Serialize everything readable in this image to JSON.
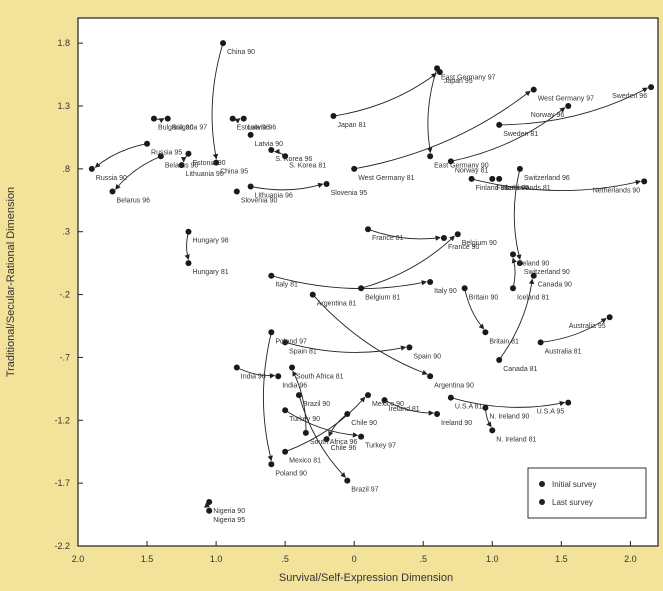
{
  "chart_data": {
    "type": "scatter",
    "xlabel": "Survival/Self-Expression Dimension",
    "ylabel": "Traditional/Secular-Rational Dimension",
    "xlim": [
      -2.0,
      2.2
    ],
    "ylim": [
      -2.2,
      2.0
    ],
    "xticks": [
      {
        "v": -2.0,
        "label": "2.0"
      },
      {
        "v": -1.5,
        "label": "1.5"
      },
      {
        "v": -1.0,
        "label": "1.0"
      },
      {
        "v": -0.5,
        "label": ".5"
      },
      {
        "v": 0,
        "label": "0"
      },
      {
        "v": 0.5,
        "label": ".5"
      },
      {
        "v": 1.0,
        "label": "1.0"
      },
      {
        "v": 1.5,
        "label": "1.5"
      },
      {
        "v": 2.0,
        "label": "2.0"
      }
    ],
    "yticks": [
      {
        "v": 1.8,
        "label": "1.8"
      },
      {
        "v": 1.3,
        "label": "1.3"
      },
      {
        "v": 0.8,
        "label": ".8"
      },
      {
        "v": 0.3,
        "label": ".3"
      },
      {
        "v": -0.2,
        "label": "-.2"
      },
      {
        "v": -0.7,
        "label": "-.7"
      },
      {
        "v": -1.2,
        "label": "-1.2"
      },
      {
        "v": -1.7,
        "label": "-1.7"
      },
      {
        "v": -2.2,
        "label": "-2.2"
      }
    ],
    "legend": {
      "position": "bottom-right",
      "entries": [
        "Initial survey",
        "Last survey"
      ]
    },
    "grid": false,
    "points": [
      {
        "id": "china90",
        "label": "China 90",
        "x": -0.95,
        "y": 1.8
      },
      {
        "id": "china95",
        "label": "China 95",
        "x": -1.0,
        "y": 0.85
      },
      {
        "id": "egermany97",
        "label": "East Germany 97",
        "x": 0.6,
        "y": 1.6
      },
      {
        "id": "japan95",
        "label": "Japan 95",
        "x": 0.62,
        "y": 1.57
      },
      {
        "id": "wgermany97",
        "label": "West Germany 97",
        "x": 1.3,
        "y": 1.43
      },
      {
        "id": "sweden96",
        "label": "Sweden 96",
        "x": 2.15,
        "y": 1.45
      },
      {
        "id": "norway96",
        "label": "Norway 96",
        "x": 1.55,
        "y": 1.3
      },
      {
        "id": "bulgaria90",
        "label": "Bulgaria 90",
        "x": -1.45,
        "y": 1.2
      },
      {
        "id": "bulgaria97",
        "label": "Bulgaria 97",
        "x": -1.35,
        "y": 1.2
      },
      {
        "id": "estonia96",
        "label": "Estonia 96",
        "x": -0.88,
        "y": 1.2
      },
      {
        "id": "latvia96",
        "label": "Latvia 96",
        "x": -0.8,
        "y": 1.2
      },
      {
        "id": "latvia90",
        "label": "Latvia 90",
        "x": -0.75,
        "y": 1.07
      },
      {
        "id": "japan81",
        "label": "Japan 81",
        "x": -0.15,
        "y": 1.22
      },
      {
        "id": "sweden81",
        "label": "Sweden 81",
        "x": 1.05,
        "y": 1.15
      },
      {
        "id": "russia95",
        "label": "Russia 95",
        "x": -1.5,
        "y": 1.0
      },
      {
        "id": "skorea96",
        "label": "S. Korea 96",
        "x": -0.6,
        "y": 0.95
      },
      {
        "id": "skorea81",
        "label": "S. Korea 81",
        "x": -0.5,
        "y": 0.9
      },
      {
        "id": "egermany90",
        "label": "East Germany 90",
        "x": 0.55,
        "y": 0.9
      },
      {
        "id": "belarus90",
        "label": "Belarus 90",
        "x": -1.4,
        "y": 0.9
      },
      {
        "id": "estonia90",
        "label": "Estonia 90",
        "x": -1.2,
        "y": 0.92
      },
      {
        "id": "russia90",
        "label": "Russia 90",
        "x": -1.9,
        "y": 0.8
      },
      {
        "id": "belarus96",
        "label": "Belarus 96",
        "x": -1.75,
        "y": 0.62
      },
      {
        "id": "lithuania90",
        "label": "Lithuania 90",
        "x": -1.25,
        "y": 0.83
      },
      {
        "id": "lithuania96",
        "label": "Lithuania 96",
        "x": -0.75,
        "y": 0.66
      },
      {
        "id": "slovenia90",
        "label": "Slovenia 90",
        "x": -0.85,
        "y": 0.62
      },
      {
        "id": "slovenia95",
        "label": "Slovenia 95",
        "x": -0.2,
        "y": 0.68
      },
      {
        "id": "wgermany81",
        "label": "West Germany 81",
        "x": 0.0,
        "y": 0.8
      },
      {
        "id": "norway81",
        "label": "Norway 81",
        "x": 0.7,
        "y": 0.86
      },
      {
        "id": "switzerland96",
        "label": "Switzerland 96",
        "x": 1.2,
        "y": 0.8
      },
      {
        "id": "finland81",
        "label": "Finland 81",
        "x": 0.85,
        "y": 0.72
      },
      {
        "id": "finland96",
        "label": "Finland 96",
        "x": 1.0,
        "y": 0.72
      },
      {
        "id": "netherlands81",
        "label": "Netherlands 81",
        "x": 1.05,
        "y": 0.72
      },
      {
        "id": "netherlands90",
        "label": "Netherlands 90",
        "x": 2.1,
        "y": 0.7
      },
      {
        "id": "france81",
        "label": "France 81",
        "x": 0.1,
        "y": 0.32
      },
      {
        "id": "france90",
        "label": "France 90",
        "x": 0.65,
        "y": 0.25
      },
      {
        "id": "belgium90",
        "label": "Belgium 90",
        "x": 0.75,
        "y": 0.28
      },
      {
        "id": "hungary98",
        "label": "Hungary 98",
        "x": -1.2,
        "y": 0.3
      },
      {
        "id": "hungary81",
        "label": "Hungary 81",
        "x": -1.2,
        "y": 0.05
      },
      {
        "id": "iceland90",
        "label": "Iceland 90",
        "x": 1.15,
        "y": 0.12
      },
      {
        "id": "switzerland90",
        "label": "Switzerland 90",
        "x": 1.2,
        "y": 0.05
      },
      {
        "id": "italy81",
        "label": "Italy 81",
        "x": -0.6,
        "y": -0.05
      },
      {
        "id": "belgium81",
        "label": "Belgium 81",
        "x": 0.05,
        "y": -0.15
      },
      {
        "id": "argentina81",
        "label": "Argentina 81",
        "x": -0.3,
        "y": -0.2
      },
      {
        "id": "italy90",
        "label": "Italy 90",
        "x": 0.55,
        "y": -0.1
      },
      {
        "id": "britain90",
        "label": "Britain 90",
        "x": 0.8,
        "y": -0.15
      },
      {
        "id": "iceland81",
        "label": "Iceland 81",
        "x": 1.15,
        "y": -0.15
      },
      {
        "id": "canada90",
        "label": "Canada 90",
        "x": 1.3,
        "y": -0.05
      },
      {
        "id": "australia95",
        "label": "Australia 95",
        "x": 1.85,
        "y": -0.38
      },
      {
        "id": "britain81",
        "label": "Britain 81",
        "x": 0.95,
        "y": -0.5
      },
      {
        "id": "poland97",
        "label": "Poland 97",
        "x": -0.6,
        "y": -0.5
      },
      {
        "id": "spain81",
        "label": "Spain 81",
        "x": -0.5,
        "y": -0.58
      },
      {
        "id": "spain90",
        "label": "Spain 90",
        "x": 0.4,
        "y": -0.62
      },
      {
        "id": "australia81",
        "label": "Australia 81",
        "x": 1.35,
        "y": -0.58
      },
      {
        "id": "canada81",
        "label": "Canada 81",
        "x": 1.05,
        "y": -0.72
      },
      {
        "id": "argentina90",
        "label": "Argentina 90",
        "x": 0.55,
        "y": -0.85
      },
      {
        "id": "india90",
        "label": "India 90",
        "x": -0.85,
        "y": -0.78
      },
      {
        "id": "india96",
        "label": "India 96",
        "x": -0.55,
        "y": -0.85
      },
      {
        "id": "southafrica81",
        "label": "South Africa 81",
        "x": -0.45,
        "y": -0.78
      },
      {
        "id": "mexico90",
        "label": "Mexico 90",
        "x": 0.1,
        "y": -1.0
      },
      {
        "id": "brazil90",
        "label": "Brazil 90",
        "x": -0.4,
        "y": -1.0
      },
      {
        "id": "usa81",
        "label": "U.S.A 81",
        "x": 0.7,
        "y": -1.02
      },
      {
        "id": "usa95",
        "label": "U.S.A 95",
        "x": 1.55,
        "y": -1.06
      },
      {
        "id": "ireland81",
        "label": "Ireland 81",
        "x": 0.22,
        "y": -1.04
      },
      {
        "id": "nireland90",
        "label": "N. Ireland 90",
        "x": 0.95,
        "y": -1.1
      },
      {
        "id": "turkey90",
        "label": "Turkey 90",
        "x": -0.5,
        "y": -1.12
      },
      {
        "id": "chile90",
        "label": "Chile 90",
        "x": -0.05,
        "y": -1.15
      },
      {
        "id": "ireland90",
        "label": "Ireland 90",
        "x": 0.6,
        "y": -1.15
      },
      {
        "id": "nireland81",
        "label": "N. Ireland 81",
        "x": 1.0,
        "y": -1.28
      },
      {
        "id": "southafrica96",
        "label": "South Africa 96",
        "x": -0.35,
        "y": -1.3
      },
      {
        "id": "turkey97",
        "label": "Turkey 97",
        "x": 0.05,
        "y": -1.33
      },
      {
        "id": "chile96",
        "label": "Chile 96",
        "x": -0.2,
        "y": -1.35
      },
      {
        "id": "mexico81",
        "label": "Mexico 81",
        "x": -0.5,
        "y": -1.45
      },
      {
        "id": "poland90",
        "label": "Poland 90",
        "x": -0.6,
        "y": -1.55
      },
      {
        "id": "brazil97",
        "label": "Brazil 97",
        "x": -0.05,
        "y": -1.68
      },
      {
        "id": "nigeria90",
        "label": "Nigeria 90",
        "x": -1.05,
        "y": -1.85
      },
      {
        "id": "nigeria95",
        "label": "Nigeria 95",
        "x": -1.05,
        "y": -1.92
      }
    ],
    "arrows": [
      [
        "china90",
        "china95"
      ],
      [
        "egermany97",
        "egermany90"
      ],
      [
        "japan81",
        "japan95"
      ],
      [
        "wgermany81",
        "wgermany97"
      ],
      [
        "sweden81",
        "sweden96"
      ],
      [
        "norway81",
        "norway96"
      ],
      [
        "bulgaria90",
        "bulgaria97"
      ],
      [
        "estonia96",
        "latvia96"
      ],
      [
        "russia95",
        "russia90"
      ],
      [
        "belarus90",
        "belarus96"
      ],
      [
        "estonia90",
        "lithuania90"
      ],
      [
        "lithuania96",
        "slovenia95"
      ],
      [
        "skorea81",
        "skorea96"
      ],
      [
        "switzerland96",
        "switzerland90"
      ],
      [
        "finland81",
        "netherlands90"
      ],
      [
        "france81",
        "france90"
      ],
      [
        "belgium81",
        "belgium90"
      ],
      [
        "hungary98",
        "hungary81"
      ],
      [
        "italy81",
        "italy90"
      ],
      [
        "argentina81",
        "argentina90"
      ],
      [
        "britain90",
        "britain81"
      ],
      [
        "iceland81",
        "iceland90"
      ],
      [
        "canada81",
        "canada90"
      ],
      [
        "australia81",
        "australia95"
      ],
      [
        "spain81",
        "spain90"
      ],
      [
        "poland97",
        "poland90"
      ],
      [
        "india90",
        "india96"
      ],
      [
        "usa81",
        "usa95"
      ],
      [
        "ireland81",
        "ireland90"
      ],
      [
        "mexico81",
        "mexico90"
      ],
      [
        "brazil90",
        "brazil97"
      ],
      [
        "southafrica96",
        "southafrica81"
      ],
      [
        "turkey90",
        "turkey97"
      ],
      [
        "chile90",
        "chile96"
      ],
      [
        "nigeria90",
        "nigeria95"
      ],
      [
        "nireland90",
        "nireland81"
      ]
    ]
  }
}
